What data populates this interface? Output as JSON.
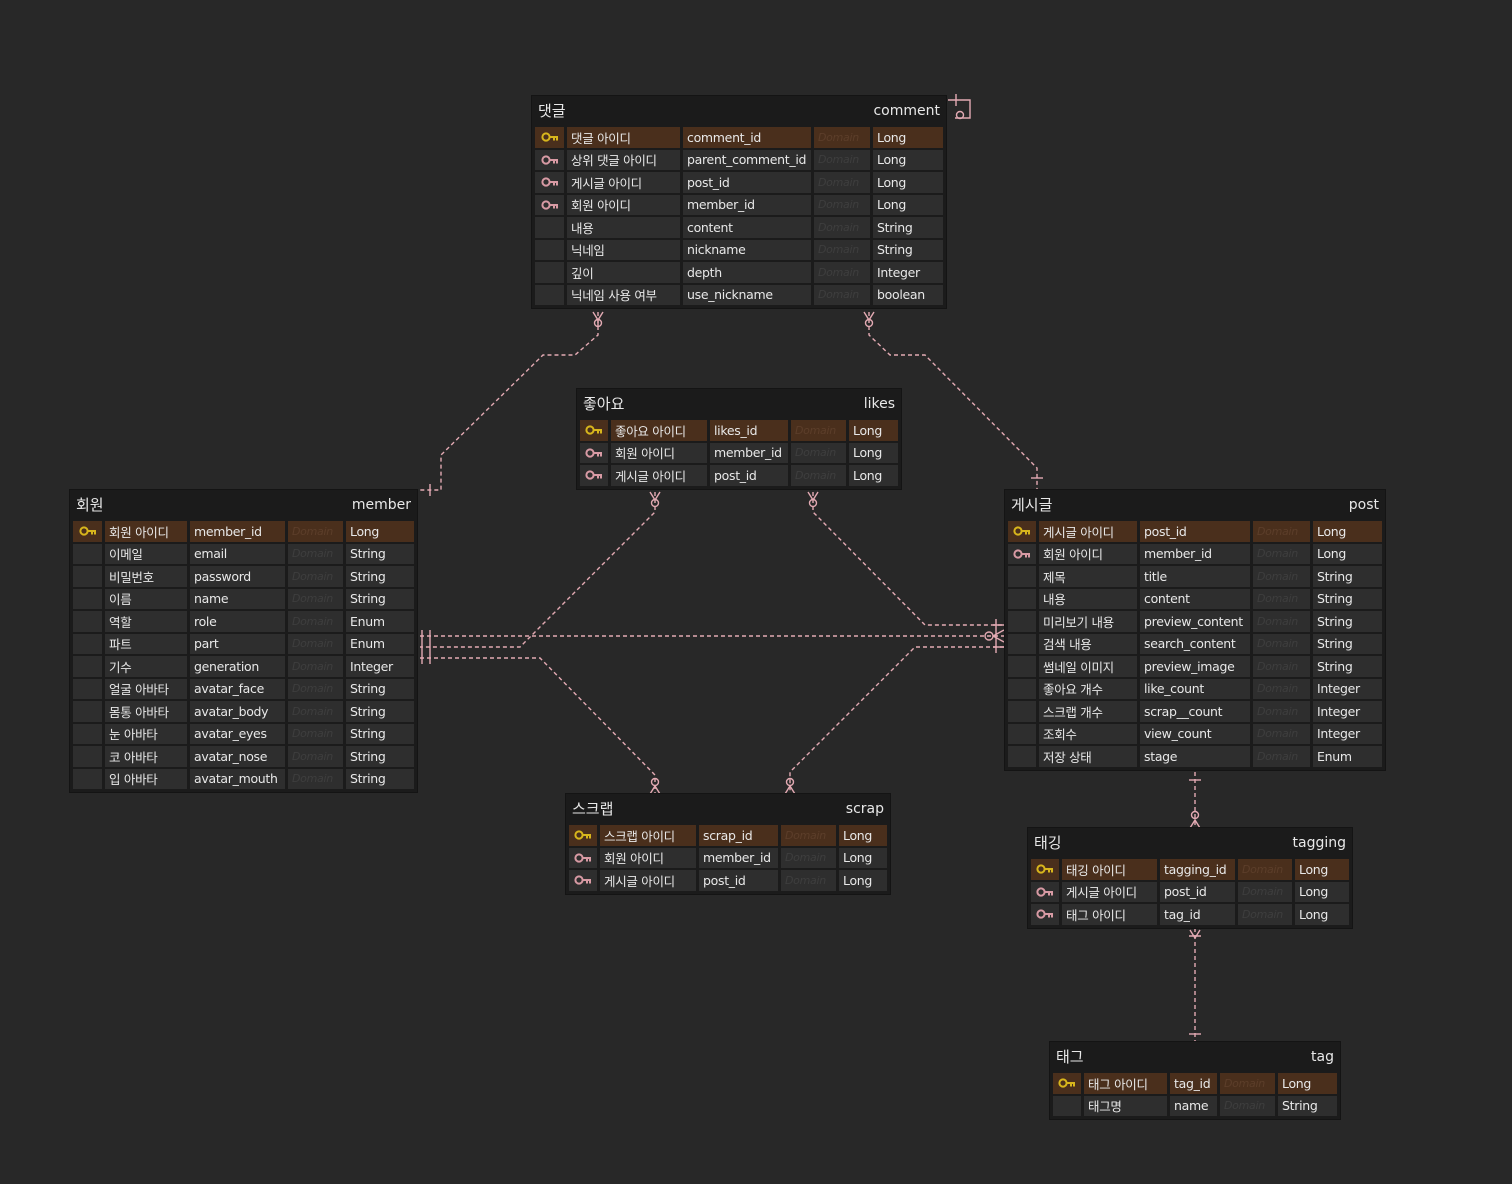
{
  "colors": {
    "background": "#282828",
    "line": "#e3aab3",
    "pk_key": "#d8b61c",
    "fk_key": "#d89aa4",
    "pk_row": "#4a2f1c"
  },
  "tables": [
    {
      "id": "comment",
      "title_ko": "댓글",
      "title_en": "comment",
      "columns": [
        {
          "key": "pk",
          "name": "댓글 아이디",
          "field": "comment_id",
          "domain": "Domain",
          "type": "Long"
        },
        {
          "key": "fk",
          "name": "상위 댓글 아이디",
          "field": "parent_comment_id",
          "domain": "Domain",
          "type": "Long"
        },
        {
          "key": "fk",
          "name": "게시글 아이디",
          "field": "post_id",
          "domain": "Domain",
          "type": "Long"
        },
        {
          "key": "fk",
          "name": "회원 아이디",
          "field": "member_id",
          "domain": "Domain",
          "type": "Long"
        },
        {
          "key": "",
          "name": "내용",
          "field": "content",
          "domain": "Domain",
          "type": "String"
        },
        {
          "key": "",
          "name": "닉네임",
          "field": "nickname",
          "domain": "Domain",
          "type": "String"
        },
        {
          "key": "",
          "name": "깊이",
          "field": "depth",
          "domain": "Domain",
          "type": "Integer"
        },
        {
          "key": "",
          "name": "닉네임 사용 여부",
          "field": "use_nickname",
          "domain": "Domain",
          "type": "boolean"
        }
      ]
    },
    {
      "id": "likes",
      "title_ko": "좋아요",
      "title_en": "likes",
      "columns": [
        {
          "key": "pk",
          "name": "좋아요 아이디",
          "field": "likes_id",
          "domain": "Domain",
          "type": "Long"
        },
        {
          "key": "fk",
          "name": "회원 아이디",
          "field": "member_id",
          "domain": "Domain",
          "type": "Long"
        },
        {
          "key": "fk",
          "name": "게시글 아이디",
          "field": "post_id",
          "domain": "Domain",
          "type": "Long"
        }
      ]
    },
    {
      "id": "member",
      "title_ko": "회원",
      "title_en": "member",
      "columns": [
        {
          "key": "pk",
          "name": "회원 아이디",
          "field": "member_id",
          "domain": "Domain",
          "type": "Long"
        },
        {
          "key": "",
          "name": "이메일",
          "field": "email",
          "domain": "Domain",
          "type": "String"
        },
        {
          "key": "",
          "name": "비밀번호",
          "field": "password",
          "domain": "Domain",
          "type": "String"
        },
        {
          "key": "",
          "name": "이름",
          "field": "name",
          "domain": "Domain",
          "type": "String"
        },
        {
          "key": "",
          "name": "역할",
          "field": "role",
          "domain": "Domain",
          "type": "Enum"
        },
        {
          "key": "",
          "name": "파트",
          "field": "part",
          "domain": "Domain",
          "type": "Enum"
        },
        {
          "key": "",
          "name": "기수",
          "field": "generation",
          "domain": "Domain",
          "type": "Integer"
        },
        {
          "key": "",
          "name": "얼굴 아바타",
          "field": "avatar_face",
          "domain": "Domain",
          "type": "String"
        },
        {
          "key": "",
          "name": "몸통 아바타",
          "field": "avatar_body",
          "domain": "Domain",
          "type": "String"
        },
        {
          "key": "",
          "name": "눈 아바타",
          "field": "avatar_eyes",
          "domain": "Domain",
          "type": "String"
        },
        {
          "key": "",
          "name": "코 아바타",
          "field": "avatar_nose",
          "domain": "Domain",
          "type": "String"
        },
        {
          "key": "",
          "name": "입 아바타",
          "field": "avatar_mouth",
          "domain": "Domain",
          "type": "String"
        }
      ]
    },
    {
      "id": "post",
      "title_ko": "게시글",
      "title_en": "post",
      "columns": [
        {
          "key": "pk",
          "name": "게시글 아이디",
          "field": "post_id",
          "domain": "Domain",
          "type": "Long"
        },
        {
          "key": "fk",
          "name": "회원 아이디",
          "field": "member_id",
          "domain": "Domain",
          "type": "Long"
        },
        {
          "key": "",
          "name": "제목",
          "field": "title",
          "domain": "Domain",
          "type": "String"
        },
        {
          "key": "",
          "name": "내용",
          "field": "content",
          "domain": "Domain",
          "type": "String"
        },
        {
          "key": "",
          "name": "미리보기 내용",
          "field": "preview_content",
          "domain": "Domain",
          "type": "String"
        },
        {
          "key": "",
          "name": "검색 내용",
          "field": "search_content",
          "domain": "Domain",
          "type": "String"
        },
        {
          "key": "",
          "name": "썸네일 이미지",
          "field": "preview_image",
          "domain": "Domain",
          "type": "String"
        },
        {
          "key": "",
          "name": "좋아요 개수",
          "field": "like_count",
          "domain": "Domain",
          "type": "Integer"
        },
        {
          "key": "",
          "name": "스크랩 개수",
          "field": "scrap__count",
          "domain": "Domain",
          "type": "Integer"
        },
        {
          "key": "",
          "name": "조회수",
          "field": "view_count",
          "domain": "Domain",
          "type": "Integer"
        },
        {
          "key": "",
          "name": "저장 상태",
          "field": "stage",
          "domain": "Domain",
          "type": "Enum"
        }
      ]
    },
    {
      "id": "scrap",
      "title_ko": "스크랩",
      "title_en": "scrap",
      "columns": [
        {
          "key": "pk",
          "name": "스크랩 아이디",
          "field": "scrap_id",
          "domain": "Domain",
          "type": "Long"
        },
        {
          "key": "fk",
          "name": "회원 아이디",
          "field": "member_id",
          "domain": "Domain",
          "type": "Long"
        },
        {
          "key": "fk",
          "name": "게시글 아이디",
          "field": "post_id",
          "domain": "Domain",
          "type": "Long"
        }
      ]
    },
    {
      "id": "tagging",
      "title_ko": "태깅",
      "title_en": "tagging",
      "columns": [
        {
          "key": "pk",
          "name": "태깅 아이디",
          "field": "tagging_id",
          "domain": "Domain",
          "type": "Long"
        },
        {
          "key": "fk",
          "name": "게시글 아이디",
          "field": "post_id",
          "domain": "Domain",
          "type": "Long"
        },
        {
          "key": "fk",
          "name": "태그 아이디",
          "field": "tag_id",
          "domain": "Domain",
          "type": "Long"
        }
      ]
    },
    {
      "id": "tag",
      "title_ko": "태그",
      "title_en": "tag",
      "columns": [
        {
          "key": "pk",
          "name": "태그 아이디",
          "field": "tag_id",
          "domain": "Domain",
          "type": "Long"
        },
        {
          "key": "",
          "name": "태그명",
          "field": "name",
          "domain": "Domain",
          "type": "String"
        }
      ]
    }
  ],
  "relationships": [
    {
      "from": "member",
      "to": "comment",
      "cardinality": "one-to-many"
    },
    {
      "from": "post",
      "to": "comment",
      "cardinality": "one-to-many"
    },
    {
      "from": "comment",
      "to": "comment",
      "cardinality": "self-reference"
    },
    {
      "from": "member",
      "to": "likes",
      "cardinality": "one-to-many"
    },
    {
      "from": "post",
      "to": "likes",
      "cardinality": "one-to-many"
    },
    {
      "from": "member",
      "to": "post",
      "cardinality": "one-to-many"
    },
    {
      "from": "member",
      "to": "scrap",
      "cardinality": "one-to-many"
    },
    {
      "from": "post",
      "to": "scrap",
      "cardinality": "one-to-many"
    },
    {
      "from": "post",
      "to": "tagging",
      "cardinality": "one-to-many"
    },
    {
      "from": "tag",
      "to": "tagging",
      "cardinality": "one-to-many"
    }
  ]
}
